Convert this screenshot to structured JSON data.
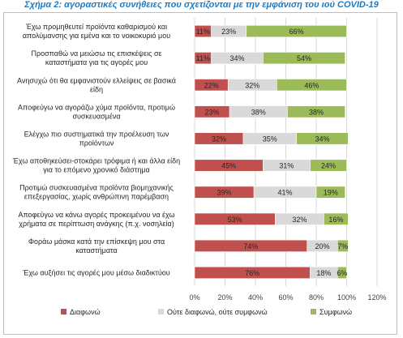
{
  "title": "Σχήμα 2: αγοραστικές συνήθειες που σχετίζονται με την εμφάνιση του ιού COVID-19",
  "colors": {
    "disagree": "#c0504d",
    "neutral": "#d9d9d9",
    "agree": "#9bbb59",
    "grid": "#d9d9d9",
    "border": "#bfbfbf"
  },
  "chart_data": {
    "type": "bar",
    "orientation": "horizontal",
    "stacked": true,
    "categories": [
      [
        "Έχω προμηθευτεί προϊόντα καθαρισμού και",
        "απολύμανσης για εμένα και το νοικοκυριό μου"
      ],
      [
        "Προσπαθώ να μειώσω τις επισκέψεις σε",
        "καταστήματα για τις αγορές μου"
      ],
      [
        "Ανησυχώ ότι θα εμφανιστούν ελλείψεις σε βασικά",
        "είδη"
      ],
      [
        "Αποφεύγω να αγοράζω χύμα προϊόντα, προτιμώ",
        "συσκευασμένα"
      ],
      [
        "Ελέγχω πιο συστηματικά την προέλευση των",
        "προϊόντων"
      ],
      [
        "Έχω αποθηκεύσει-στοκάρει τρόφιμα ή και άλλα είδη",
        "για το επόμενο χρονικό διάστημα"
      ],
      [
        "Προτιμώ συσκευασμένα προϊόντα βιομηχανικής",
        "επεξεργασίας, χωρίς ανθρώπινη παρέμβαση"
      ],
      [
        "Αποφεύγω να κάνω αγορές προκειμένου να έχω",
        "χρήματα σε περίπτωση ανάγκης (π.χ. νοσηλεία)"
      ],
      [
        "Φοράω μάσκα κατά την επίσκεψη μου στα",
        "καταστήματα"
      ],
      [
        "Έχω αυξήσει τις αγορές μου μέσω διαδικτύου"
      ]
    ],
    "series": [
      {
        "name": "Διαφωνώ",
        "values": [
          11,
          11,
          22,
          23,
          32,
          45,
          39,
          53,
          74,
          76
        ]
      },
      {
        "name": "Ούτε διαφωνώ, ούτε συμφωνώ",
        "values": [
          23,
          34,
          32,
          38,
          35,
          31,
          41,
          32,
          20,
          18
        ]
      },
      {
        "name": "Συμφωνώ",
        "values": [
          66,
          54,
          46,
          38,
          34,
          24,
          19,
          16,
          7,
          6
        ]
      }
    ],
    "x_ticks": [
      "0%",
      "20%",
      "40%",
      "60%",
      "80%",
      "100%",
      "120%"
    ],
    "xlim": [
      0,
      120
    ],
    "value_suffix": "%",
    "grid": true,
    "legend_position": "bottom"
  }
}
